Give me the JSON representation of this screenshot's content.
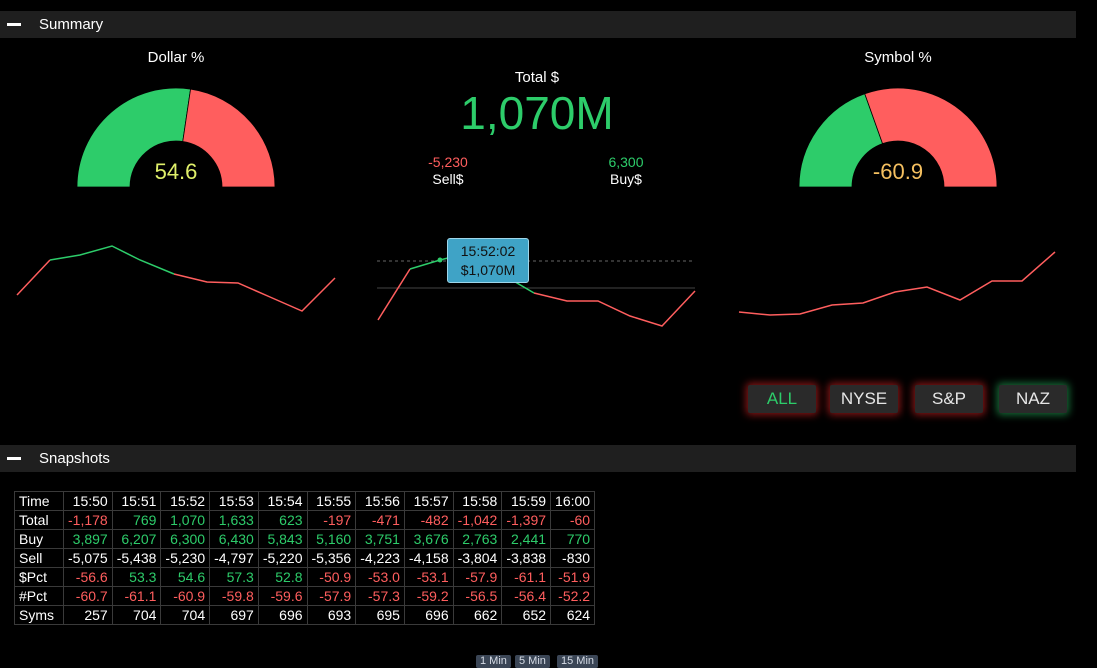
{
  "summary": {
    "title": "Summary",
    "dollar_gauge": {
      "title": "Dollar %",
      "value": "54.6",
      "value_color": "#e0f06a",
      "green_fraction": 0.547,
      "green": "#2dcc6a",
      "red": "#ff5e5e"
    },
    "symbol_gauge": {
      "title": "Symbol %",
      "value": "-60.9",
      "value_color": "#f5c060",
      "green_fraction": 0.391,
      "green": "#2dcc6a",
      "red": "#ff5e5e"
    },
    "total": {
      "label": "Total $",
      "value": "1,070M",
      "color": "#2dcc6a"
    },
    "sell": {
      "value": "-5,230",
      "label": "Sell$",
      "color": "#ff5e5e"
    },
    "buy": {
      "value": "6,300",
      "label": "Buy$",
      "color": "#2dcc6a"
    },
    "tooltip": {
      "time": "15:52:02",
      "value": "$1,070M"
    },
    "filters": [
      {
        "label": "ALL",
        "active": true,
        "text_color": "#2dcc6a",
        "glow": "#ff2a2a"
      },
      {
        "label": "NYSE",
        "active": false,
        "text_color": "#e6e6e6",
        "glow": "#ff2a2a"
      },
      {
        "label": "S&P",
        "active": false,
        "text_color": "#e6e6e6",
        "glow": "#ff2a2a"
      },
      {
        "label": "NAZ",
        "active": false,
        "text_color": "#e6e6e6",
        "glow": "#2dcc6a"
      }
    ]
  },
  "snapshots": {
    "title": "Snapshots",
    "times": [
      "15:50",
      "15:51",
      "15:52",
      "15:53",
      "15:54",
      "15:55",
      "15:56",
      "15:57",
      "15:58",
      "15:59",
      "16:00"
    ],
    "rows": [
      {
        "label": "Total",
        "values": [
          "-1,178",
          "769",
          "1,070",
          "1,633",
          "623",
          "-197",
          "-471",
          "-482",
          "-1,042",
          "-1,397",
          "-60"
        ]
      },
      {
        "label": "Buy",
        "values": [
          "3,897",
          "6,207",
          "6,300",
          "6,430",
          "5,843",
          "5,160",
          "3,751",
          "3,676",
          "2,763",
          "2,441",
          "770"
        ]
      },
      {
        "label": "Sell",
        "values": [
          "-5,075",
          "-5,438",
          "-5,230",
          "-4,797",
          "-5,220",
          "-5,356",
          "-4,223",
          "-4,158",
          "-3,804",
          "-3,838",
          "-830"
        ]
      },
      {
        "label": "$Pct",
        "values": [
          "-56.6",
          "53.3",
          "54.6",
          "57.3",
          "52.8",
          "-50.9",
          "-53.0",
          "-53.1",
          "-57.9",
          "-61.1",
          "-51.9"
        ]
      },
      {
        "label": "#Pct",
        "values": [
          "-60.7",
          "-61.1",
          "-60.9",
          "-59.8",
          "-59.6",
          "-57.9",
          "-57.3",
          "-59.2",
          "-56.5",
          "-56.4",
          "-52.2"
        ]
      },
      {
        "label": "Syms",
        "values": [
          "257",
          "704",
          "704",
          "697",
          "696",
          "693",
          "695",
          "696",
          "662",
          "652",
          "624"
        ]
      }
    ],
    "intervals": [
      "1 Min",
      "5 Min",
      "15 Min"
    ]
  },
  "colors": {
    "positive": "#2dcc6a",
    "negative": "#ff5e5e",
    "neutral": "#ffffff"
  }
}
